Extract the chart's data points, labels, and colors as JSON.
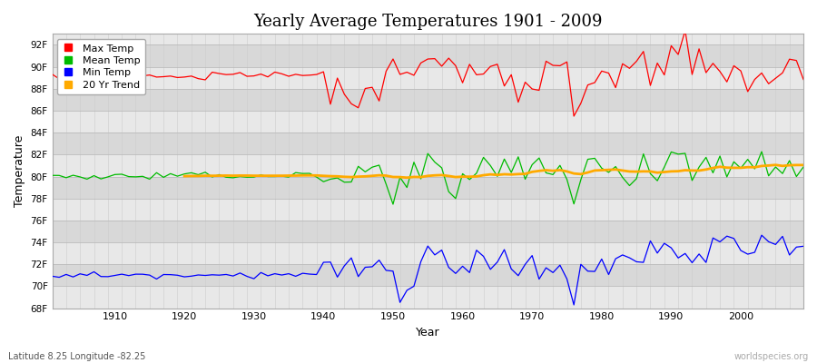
{
  "title": "Yearly Average Temperatures 1901 - 2009",
  "xlabel": "Year",
  "ylabel": "Temperature",
  "start_year": 1901,
  "end_year": 2009,
  "ylim": [
    68,
    93
  ],
  "yticks": [
    68,
    70,
    72,
    74,
    76,
    78,
    80,
    82,
    84,
    86,
    88,
    90,
    92
  ],
  "ytick_labels": [
    "68F",
    "70F",
    "72F",
    "74F",
    "76F",
    "78F",
    "80F",
    "82F",
    "84F",
    "86F",
    "88F",
    "90F",
    "92F"
  ],
  "xticks": [
    1910,
    1920,
    1930,
    1940,
    1950,
    1960,
    1970,
    1980,
    1990,
    2000
  ],
  "colors": {
    "max": "#ff0000",
    "mean": "#00bb00",
    "min": "#0000ff",
    "trend": "#ffaa00",
    "background_outer": "#ffffff",
    "background_inner": "#e0e0e0",
    "grid_major": "#bbbbbb",
    "grid_minor": "#cccccc",
    "band_light": "#e8e8e8",
    "band_dark": "#d8d8d8"
  },
  "legend_labels": [
    "Max Temp",
    "Mean Temp",
    "Min Temp",
    "20 Yr Trend"
  ],
  "footnote_left": "Latitude 8.25 Longitude -82.25",
  "footnote_right": "worldspecies.org",
  "linewidth": 0.9,
  "trend_linewidth": 2.0
}
